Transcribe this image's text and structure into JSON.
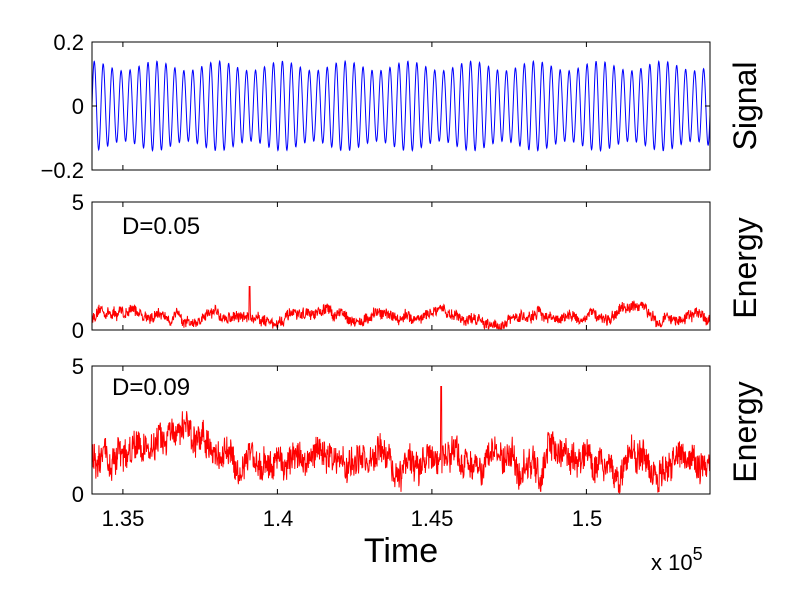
{
  "chart_data": [
    {
      "type": "line",
      "panel": "signal",
      "ylabel": "Signal",
      "ylim": [
        -0.2,
        0.2
      ],
      "yticks": [
        -0.2,
        0,
        0.2
      ],
      "ytick_labels": [
        "−0.2",
        "0",
        "0.2"
      ],
      "xlim": [
        134000,
        154000
      ],
      "xticks": [
        135000,
        140000,
        145000,
        150000
      ],
      "series": [
        {
          "name": "signal",
          "color": "#0000ff",
          "carrier_period": 290,
          "envelope_period": 2050,
          "amplitude_max": 0.14,
          "amplitude_min": 0.11
        }
      ]
    },
    {
      "type": "line",
      "panel": "energy-d005",
      "annotation": "D=0.05",
      "ylabel": "Energy",
      "ylim": [
        0,
        5
      ],
      "yticks": [
        0,
        5
      ],
      "ytick_labels": [
        "0",
        "5"
      ],
      "xlim": [
        134000,
        154000
      ],
      "xticks": [
        135000,
        140000,
        145000,
        150000
      ],
      "series": [
        {
          "name": "energy",
          "color": "#ff0000",
          "mean": 0.5,
          "noise": 0.25,
          "peak": {
            "x": 139100,
            "y": 1.7
          }
        }
      ]
    },
    {
      "type": "line",
      "panel": "energy-d009",
      "annotation": "D=0.09",
      "ylabel": "Energy",
      "xlabel": "Time",
      "ylim": [
        0,
        5
      ],
      "yticks": [
        0,
        5
      ],
      "ytick_labels": [
        "0",
        "5"
      ],
      "xlim": [
        134000,
        154000
      ],
      "xticks": [
        135000,
        140000,
        145000,
        150000
      ],
      "xtick_labels": [
        "1.35",
        "1.4",
        "1.45",
        "1.5"
      ],
      "x_multiplier": {
        "base": "x 10",
        "exponent": "5"
      },
      "series": [
        {
          "name": "energy",
          "color": "#ff0000",
          "mean": 1.3,
          "noise": 0.7,
          "peak": {
            "x": 145300,
            "y": 4.2
          }
        }
      ]
    }
  ]
}
